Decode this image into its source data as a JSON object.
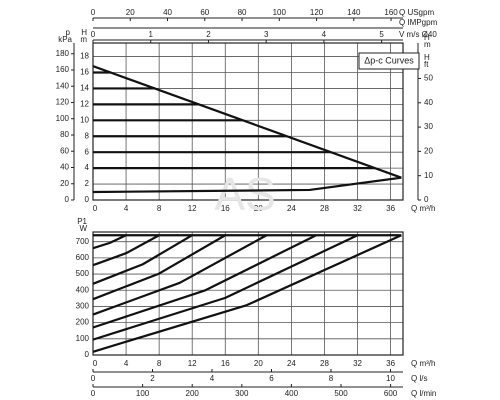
{
  "chart_data": [
    {
      "type": "line",
      "legend": "Δp-c Curves",
      "legend_position": "upper right",
      "watermark": "AS",
      "color": "#111111",
      "grid": true,
      "xlabel": "Q m³/h",
      "xlim": [
        0,
        37.5
      ],
      "xticks": [
        0,
        4,
        8,
        12,
        16,
        20,
        24,
        28,
        32,
        36
      ],
      "ylabel": "H",
      "yunit": "m",
      "ylim": [
        0,
        19.7
      ],
      "yticks": [
        0,
        2,
        4,
        6,
        8,
        10,
        12,
        14,
        16,
        18
      ],
      "top_axes": [
        {
          "label": "Q USgpm",
          "lim": [
            0,
            166.4
          ],
          "ticks": [
            0,
            20,
            40,
            60,
            80,
            100,
            120,
            140,
            160
          ]
        },
        {
          "label": "Q IMPgpm",
          "lim": [
            0,
            137.5
          ]
        },
        {
          "label": "V m/s Ø40",
          "lim": [
            0,
            5.37
          ],
          "ticks": [
            0,
            1,
            2,
            3,
            4,
            5
          ]
        }
      ],
      "left_axis": {
        "label": "p",
        "unit": "kPa",
        "lim": [
          0,
          193.2
        ],
        "ticks": [
          0,
          20,
          40,
          60,
          80,
          100,
          120,
          140,
          160,
          180
        ]
      },
      "right_axes": [
        {
          "label": "H",
          "unit": "m"
        },
        {
          "label": "H",
          "unit": "ft",
          "lim": [
            0,
            64.6
          ],
          "ticks": [
            0,
            10,
            20,
            30,
            40,
            50
          ]
        }
      ],
      "series": [
        {
          "x": [
            0,
            37.3
          ],
          "values": [
            16.8,
            2.8
          ]
        },
        {
          "x": [
            0,
            26.2,
            37.3
          ],
          "values": [
            1,
            1.26,
            2.8
          ]
        },
        {
          "x": [
            0,
            34.1
          ],
          "values": [
            4,
            4
          ]
        },
        {
          "x": [
            0,
            28.8
          ],
          "values": [
            6,
            6
          ]
        },
        {
          "x": [
            0,
            23.4
          ],
          "values": [
            8,
            8
          ]
        },
        {
          "x": [
            0,
            18.1
          ],
          "values": [
            10,
            10
          ]
        },
        {
          "x": [
            0,
            12.8
          ],
          "values": [
            12,
            12
          ]
        },
        {
          "x": [
            0,
            7.5
          ],
          "values": [
            14,
            14
          ]
        },
        {
          "x": [
            0,
            2.1
          ],
          "values": [
            16,
            16
          ]
        }
      ]
    },
    {
      "type": "line",
      "color": "#111111",
      "grid": true,
      "xlabel": "Q m³/h",
      "xlim": [
        0,
        37.5
      ],
      "xticks": [
        0,
        4,
        8,
        12,
        16,
        20,
        24,
        28,
        32,
        36
      ],
      "ylabel": "P1",
      "yunit": "W",
      "ylim": [
        0,
        760
      ],
      "yticks": [
        0,
        100,
        200,
        300,
        400,
        500,
        600,
        700
      ],
      "bottom_axes": [
        {
          "label": "Q l/s",
          "lim": [
            0,
            10.42
          ],
          "ticks": [
            0,
            2,
            4,
            6,
            8,
            10
          ]
        },
        {
          "label": "Q l/min",
          "lim": [
            0,
            625
          ],
          "ticks": [
            0,
            100,
            200,
            300,
            400,
            500,
            600
          ]
        }
      ],
      "series": [
        {
          "x": [
            0,
            37.3
          ],
          "values": [
            740,
            740
          ]
        },
        {
          "x": [
            0,
            2,
            4
          ],
          "values": [
            660,
            692,
            740
          ]
        },
        {
          "x": [
            0,
            4,
            8
          ],
          "values": [
            555,
            629,
            740
          ]
        },
        {
          "x": [
            0,
            6,
            12
          ],
          "values": [
            440,
            560,
            740
          ]
        },
        {
          "x": [
            0,
            8,
            16
          ],
          "values": [
            345,
            503,
            740
          ]
        },
        {
          "x": [
            0,
            10.5,
            21
          ],
          "values": [
            250,
            446,
            740
          ]
        },
        {
          "x": [
            0,
            13.5,
            27
          ],
          "values": [
            170,
            398,
            740
          ]
        },
        {
          "x": [
            0,
            16,
            32
          ],
          "values": [
            95,
            353,
            740
          ]
        },
        {
          "x": [
            0,
            18.6,
            37.3
          ],
          "values": [
            20,
            308,
            740
          ]
        }
      ]
    }
  ]
}
